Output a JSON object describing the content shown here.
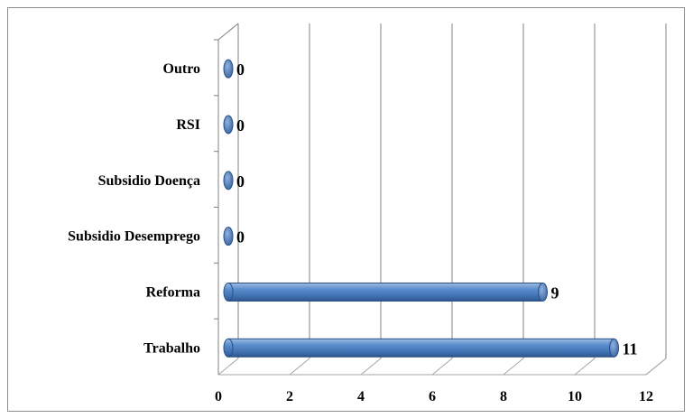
{
  "chart_data": {
    "type": "bar",
    "orientation": "horizontal",
    "style": "3d-cylinder",
    "categories": [
      "Trabalho",
      "Reforma",
      "Subsidio Desemprego",
      "Subsidio Doença",
      "RSI",
      "Outro"
    ],
    "values": [
      11,
      9,
      0,
      0,
      0,
      0
    ],
    "data_labels": [
      "11",
      "9",
      "0",
      "0",
      "0",
      "0"
    ],
    "xlim": [
      0,
      12
    ],
    "xticks": [
      "0",
      "2",
      "4",
      "6",
      "8",
      "10",
      "12"
    ],
    "grid": true,
    "legend": "none",
    "bar_color": "#4a7ec0",
    "bar_edge_color": "#2b4f85"
  }
}
